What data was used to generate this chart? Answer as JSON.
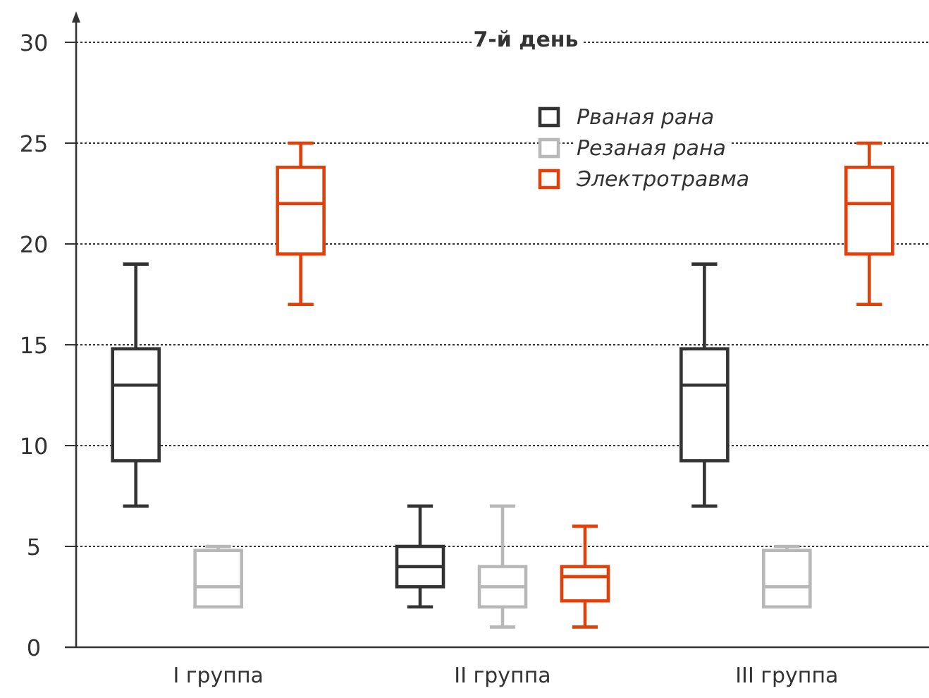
{
  "chart_data": {
    "type": "box",
    "title": "7-й день",
    "categories": [
      "I группа",
      "II группа",
      "III группа"
    ],
    "ylim": [
      0,
      30
    ],
    "yticks": [
      0,
      5,
      10,
      15,
      20,
      25,
      30
    ],
    "grid": "y",
    "legend": "top",
    "series": [
      {
        "name": "Рваная рана",
        "color": "#333333",
        "boxes": [
          {
            "low": 7,
            "q1": 9.25,
            "median": 13,
            "q3": 14.8,
            "high": 19
          },
          {
            "low": 2,
            "q1": 3,
            "median": 4,
            "q3": 5,
            "high": 7
          },
          {
            "low": 7,
            "q1": 9.25,
            "median": 13,
            "q3": 14.8,
            "high": 19
          }
        ]
      },
      {
        "name": "Резаная рана",
        "color": "#b8b8b8",
        "boxes": [
          {
            "low": 2,
            "q1": 2,
            "median": 3,
            "q3": 4.8,
            "high": 5
          },
          {
            "low": 1,
            "q1": 2,
            "median": 3,
            "q3": 4,
            "high": 7
          },
          {
            "low": 2,
            "q1": 2,
            "median": 3,
            "q3": 4.8,
            "high": 5
          }
        ]
      },
      {
        "name": "Электротравма",
        "color": "#e0400a",
        "boxes": [
          {
            "low": 17,
            "q1": 19.5,
            "median": 22,
            "q3": 23.8,
            "high": 25
          },
          {
            "low": 1,
            "q1": 2.3,
            "median": 3.5,
            "q3": 4,
            "high": 6
          },
          {
            "low": 17,
            "q1": 19.5,
            "median": 22,
            "q3": 23.8,
            "high": 25
          }
        ]
      }
    ]
  }
}
